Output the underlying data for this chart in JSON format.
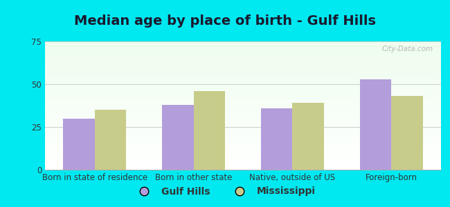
{
  "title": "Median age by place of birth - Gulf Hills",
  "categories": [
    "Born in state of residence",
    "Born in other state",
    "Native, outside of US",
    "Foreign-born"
  ],
  "gulf_hills": [
    30,
    38,
    36,
    53
  ],
  "mississippi": [
    35,
    46,
    39,
    43
  ],
  "gulf_hills_color": "#b39ddb",
  "mississippi_color": "#c8cc8a",
  "ylim": [
    0,
    75
  ],
  "yticks": [
    0,
    25,
    50,
    75
  ],
  "bar_width": 0.32,
  "legend_labels": [
    "Gulf Hills",
    "Mississippi"
  ],
  "background_outer": "#00e8f0",
  "grid_color": "#cccccc",
  "title_fontsize": 14,
  "tick_fontsize": 8.5,
  "legend_fontsize": 10
}
